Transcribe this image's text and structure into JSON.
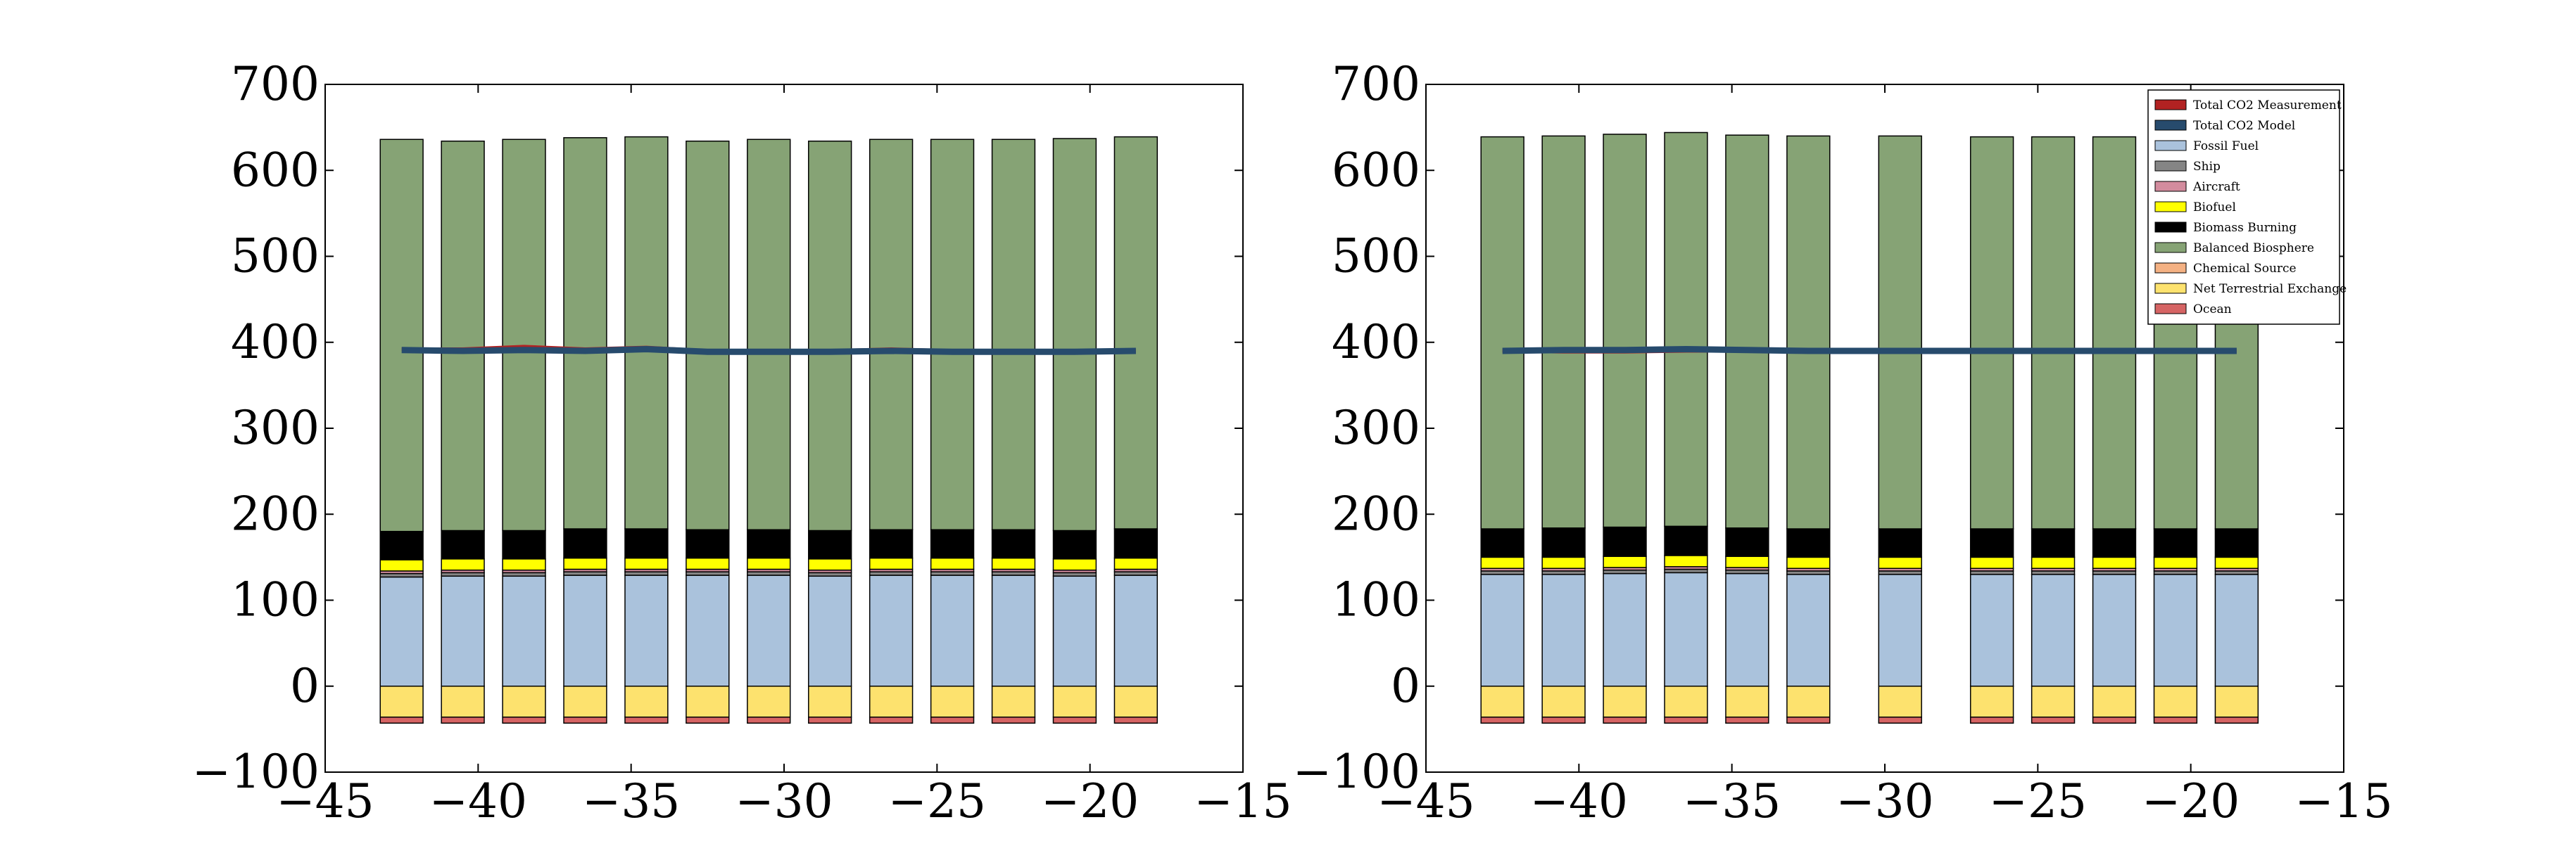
{
  "chart_data": [
    {
      "type": "bar",
      "stacked": true,
      "x": [
        -42.5,
        -40.5,
        -38.5,
        -36.5,
        -34.5,
        -32.5,
        -30.5,
        -28.5,
        -26.5,
        -24.5,
        -22.5,
        -20.5,
        -18.5
      ],
      "xlim": [
        -45,
        -15
      ],
      "ylim": [
        -100,
        700
      ],
      "xticks": [
        -45,
        -40,
        -35,
        -30,
        -25,
        -20,
        -15
      ],
      "yticks": [
        -100,
        0,
        100,
        200,
        300,
        400,
        500,
        600,
        700
      ],
      "xtick_labels": [
        "−45",
        "−40",
        "−35",
        "−30",
        "−25",
        "−20",
        "−15"
      ],
      "ytick_labels": [
        "−100",
        "0",
        "100",
        "200",
        "300",
        "400",
        "500",
        "600",
        "700"
      ],
      "grid": false,
      "negative_series": [
        {
          "name": "Net Terrestrial Exchange",
          "color": "#fde26e",
          "values": [
            -36,
            -36,
            -36,
            -36,
            -36,
            -36,
            -36,
            -36,
            -36,
            -36,
            -36,
            -36,
            -36
          ]
        },
        {
          "name": "Ocean",
          "color": "#d66464",
          "values": [
            -7,
            -7,
            -7,
            -7,
            -7,
            -7,
            -7,
            -7,
            -7,
            -7,
            -7,
            -7,
            -7
          ]
        }
      ],
      "positive_series": [
        {
          "name": "Fossil Fuel",
          "color": "#aac2dc",
          "values": [
            127,
            128,
            128,
            129,
            129,
            129,
            129,
            128,
            129,
            129,
            129,
            128,
            129
          ]
        },
        {
          "name": "Ship",
          "color": "#858585",
          "values": [
            4,
            4,
            4,
            4,
            4,
            4,
            4,
            4,
            4,
            4,
            4,
            4,
            4
          ]
        },
        {
          "name": "Aircraft",
          "color": "#d38c9e",
          "values": [
            3,
            3,
            3,
            3,
            3,
            3,
            3,
            3,
            3,
            3,
            3,
            3,
            3
          ]
        },
        {
          "name": "Biofuel",
          "color": "#ffff00",
          "values": [
            13,
            13,
            13,
            13,
            13,
            13,
            13,
            13,
            13,
            13,
            13,
            13,
            13
          ]
        },
        {
          "name": "Biomass Burning",
          "color": "#000000",
          "values": [
            33,
            33,
            33,
            34,
            34,
            33,
            33,
            33,
            33,
            33,
            33,
            33,
            34
          ]
        },
        {
          "name": "Balanced Biosphere",
          "color": "#86a375",
          "values": [
            456,
            453,
            455,
            455,
            456,
            452,
            454,
            453,
            454,
            454,
            454,
            456,
            456
          ]
        }
      ],
      "lines": [
        {
          "name": "Total CO2 Measurement",
          "color": "#b22222",
          "values": [
            392,
            392,
            395,
            392,
            394,
            390,
            389,
            390,
            392,
            390,
            390,
            390,
            390
          ]
        },
        {
          "name": "Total CO2 Model",
          "color": "#274b6d",
          "values": [
            391,
            390,
            391,
            390,
            392,
            389,
            389,
            389,
            390,
            389,
            389,
            389,
            390
          ]
        }
      ]
    },
    {
      "type": "bar",
      "stacked": true,
      "x": [
        -42.5,
        -40.5,
        -38.5,
        -36.5,
        -34.5,
        -32.5,
        -29.5,
        -26.5,
        -24.5,
        -22.5,
        -20.5,
        -18.5
      ],
      "xlim": [
        -45,
        -15
      ],
      "ylim": [
        -100,
        700
      ],
      "xticks": [
        -45,
        -40,
        -35,
        -30,
        -25,
        -20,
        -15
      ],
      "yticks": [
        -100,
        0,
        100,
        200,
        300,
        400,
        500,
        600,
        700
      ],
      "xtick_labels": [
        "−45",
        "−40",
        "−35",
        "−30",
        "−25",
        "−20",
        "−15"
      ],
      "ytick_labels": [
        "−100",
        "0",
        "100",
        "200",
        "300",
        "400",
        "500",
        "600",
        "700"
      ],
      "grid": false,
      "legend_position": "top-right",
      "negative_series": [
        {
          "name": "Net Terrestrial Exchange",
          "color": "#fde26e",
          "values": [
            -36,
            -36,
            -36,
            -36,
            -36,
            -36,
            -36,
            -36,
            -36,
            -36,
            -36,
            -36
          ]
        },
        {
          "name": "Ocean",
          "color": "#d66464",
          "values": [
            -7,
            -7,
            -7,
            -7,
            -7,
            -7,
            -7,
            -7,
            -7,
            -7,
            -7,
            -7
          ]
        }
      ],
      "positive_series": [
        {
          "name": "Fossil Fuel",
          "color": "#aac2dc",
          "values": [
            130,
            130,
            131,
            132,
            131,
            130,
            130,
            130,
            130,
            130,
            130,
            130
          ]
        },
        {
          "name": "Ship",
          "color": "#858585",
          "values": [
            4,
            4,
            4,
            4,
            4,
            4,
            4,
            4,
            4,
            4,
            4,
            4
          ]
        },
        {
          "name": "Aircraft",
          "color": "#d38c9e",
          "values": [
            3,
            3,
            3,
            3,
            3,
            3,
            3,
            3,
            3,
            3,
            3,
            3
          ]
        },
        {
          "name": "Biofuel",
          "color": "#ffff00",
          "values": [
            13,
            13,
            13,
            13,
            13,
            13,
            13,
            13,
            13,
            13,
            13,
            13
          ]
        },
        {
          "name": "Biomass Burning",
          "color": "#000000",
          "values": [
            33,
            34,
            34,
            34,
            33,
            33,
            33,
            33,
            33,
            33,
            33,
            33
          ]
        },
        {
          "name": "Balanced Biosphere",
          "color": "#86a375",
          "values": [
            456,
            456,
            457,
            458,
            457,
            457,
            457,
            456,
            456,
            456,
            456,
            456
          ]
        }
      ],
      "lines": [
        {
          "name": "Total CO2 Measurement",
          "color": "#b22222",
          "values": [
            390,
            389,
            389,
            390,
            390,
            390,
            389,
            389,
            389,
            389,
            389,
            390
          ]
        },
        {
          "name": "Total CO2 Model",
          "color": "#274b6d",
          "values": [
            390,
            391,
            391,
            392,
            391,
            390,
            390,
            390,
            390,
            390,
            390,
            390
          ]
        }
      ]
    }
  ],
  "legend": {
    "items": [
      {
        "label": "Total CO2 Measurement",
        "color": "#b22222"
      },
      {
        "label": "Total CO2 Model",
        "color": "#274b6d"
      },
      {
        "label": "Fossil Fuel",
        "color": "#aac2dc"
      },
      {
        "label": "Ship",
        "color": "#858585"
      },
      {
        "label": "Aircraft",
        "color": "#d38c9e"
      },
      {
        "label": "Biofuel",
        "color": "#ffff00"
      },
      {
        "label": "Biomass Burning",
        "color": "#000000"
      },
      {
        "label": "Balanced Biosphere",
        "color": "#86a375"
      },
      {
        "label": "Chemical Source",
        "color": "#f4b183"
      },
      {
        "label": "Net Terrestrial Exchange",
        "color": "#fde26e"
      },
      {
        "label": "Ocean",
        "color": "#d66464"
      }
    ]
  }
}
